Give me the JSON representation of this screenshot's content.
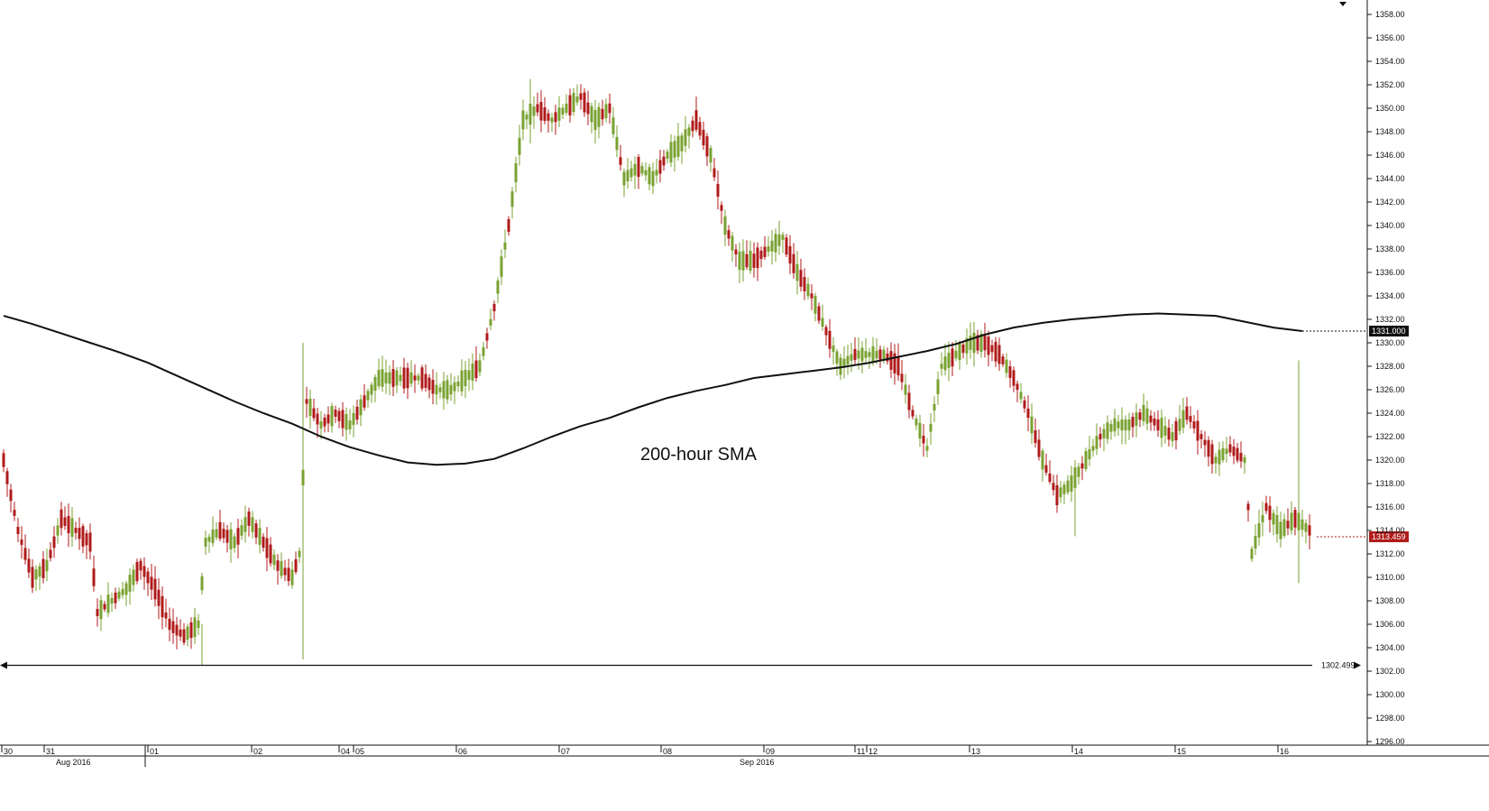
{
  "chart_data": {
    "type": "candlestick",
    "title": "",
    "xlabel": "",
    "ylabel": "",
    "ylim": [
      1296,
      1359
    ],
    "yticks": [
      "1358.00",
      "1356.00",
      "1354.00",
      "1352.00",
      "1350.00",
      "1348.00",
      "1346.00",
      "1344.00",
      "1342.00",
      "1340.00",
      "1338.00",
      "1336.00",
      "1334.00",
      "1332.00",
      "1330.00",
      "1328.00",
      "1326.00",
      "1324.00",
      "1322.00",
      "1320.00",
      "1318.00",
      "1316.00",
      "1314.00",
      "1312.00",
      "1310.00",
      "1308.00",
      "1306.00",
      "1304.00",
      "1302.00",
      "1300.00",
      "1298.00",
      "1296.00"
    ],
    "ytick_values": [
      1358,
      1356,
      1354,
      1352,
      1350,
      1348,
      1346,
      1344,
      1342,
      1340,
      1338,
      1336,
      1334,
      1332,
      1330,
      1328,
      1326,
      1324,
      1322,
      1320,
      1318,
      1316,
      1314,
      1312,
      1310,
      1308,
      1306,
      1304,
      1302,
      1300,
      1298,
      1296
    ],
    "day_labels": [
      "30",
      "31",
      "01",
      "02",
      "04",
      "05",
      "06",
      "07",
      "08",
      "09",
      "11",
      "12",
      "13",
      "14",
      "15",
      "16"
    ],
    "month_labels": [
      "Aug 2016",
      "Sep 2016"
    ],
    "grid": false,
    "annotation": "200-hour SMA",
    "sma_label": "1331.000",
    "sma_value": 1331.0,
    "last_price_label": "1313.459",
    "last_price": 1313.459,
    "support_label": "1302.499",
    "support_value": 1302.499,
    "colors": {
      "up": "#7aa232",
      "down": "#b01b1b",
      "sma_line": "#111111",
      "sma_label_bg": "#111111",
      "last_price_bg": "#b01b1b",
      "axis": "#111111"
    },
    "sma_series": {
      "name": "",
      "x": [
        0,
        8,
        16,
        24,
        32,
        40,
        48,
        56,
        64,
        72,
        80,
        88,
        96,
        104,
        112,
        120,
        128,
        136,
        144,
        152,
        160,
        168,
        176,
        184,
        192,
        200,
        208,
        216,
        224,
        232,
        240,
        248,
        256,
        264,
        272,
        280,
        288,
        296,
        304,
        312,
        320,
        328,
        336,
        344,
        352,
        360
      ],
      "y": [
        1332.3,
        1331.6,
        1330.8,
        1330.0,
        1329.2,
        1328.3,
        1327.2,
        1326.1,
        1325.0,
        1324.0,
        1323.1,
        1322.0,
        1321.1,
        1320.4,
        1319.8,
        1319.6,
        1319.7,
        1320.1,
        1321.0,
        1322.0,
        1322.9,
        1323.6,
        1324.5,
        1325.3,
        1325.9,
        1326.4,
        1327.0,
        1327.3,
        1327.6,
        1327.9,
        1328.3,
        1328.8,
        1329.3,
        1329.9,
        1330.7,
        1331.3,
        1331.7,
        1332.0,
        1332.2,
        1332.4,
        1332.5,
        1332.4,
        1332.3,
        1331.8,
        1331.3,
        1331.0
      ]
    }
  }
}
